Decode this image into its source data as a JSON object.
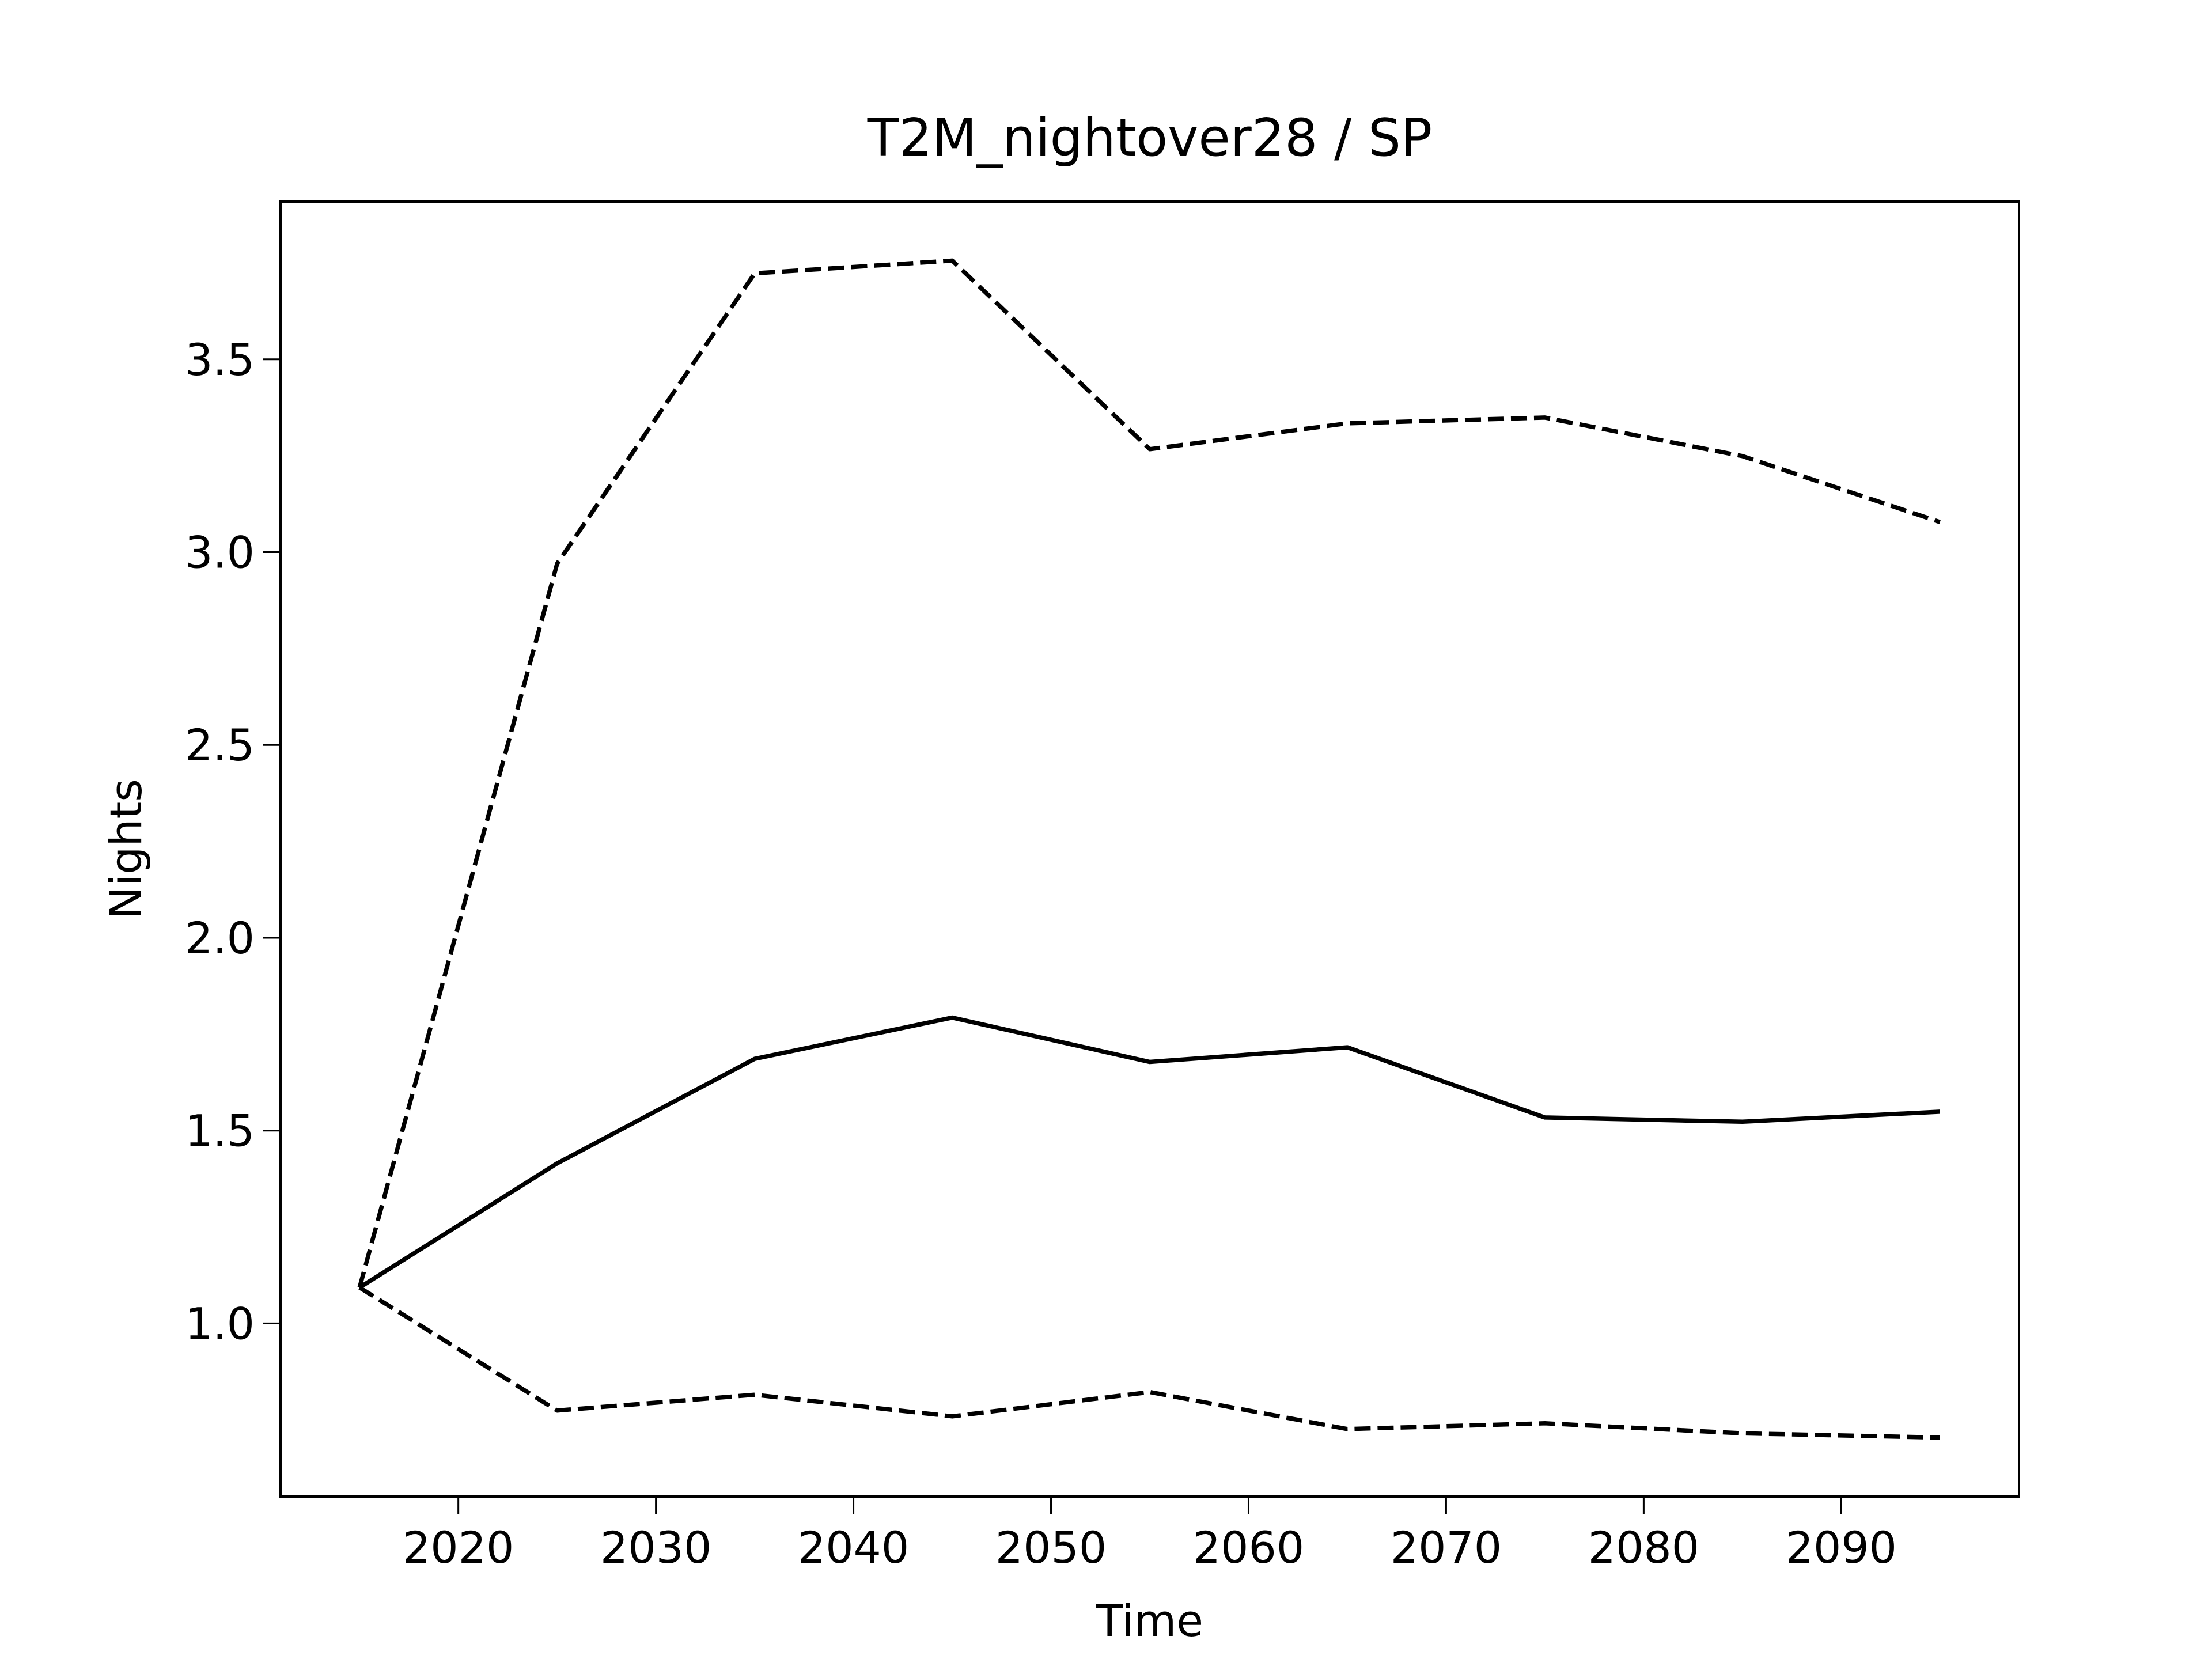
{
  "chart_data": {
    "type": "line",
    "title": "T2M_nightover28 / SP",
    "xlabel": "Time",
    "ylabel": "Nights",
    "x": [
      2015,
      2025,
      2035,
      2045,
      2055,
      2065,
      2075,
      2085,
      2095
    ],
    "series": [
      {
        "color": "#000000",
        "dashed": false,
        "values": [
          1.093,
          1.415,
          1.686,
          1.793,
          1.678,
          1.716,
          1.534,
          1.523,
          1.549
        ]
      },
      {
        "color": "#000000",
        "dashed": true,
        "values": [
          1.093,
          2.97,
          3.723,
          3.756,
          3.267,
          3.334,
          3.349,
          3.249,
          3.078
        ]
      },
      {
        "color": "#000000",
        "dashed": true,
        "values": [
          1.093,
          0.774,
          0.815,
          0.759,
          0.822,
          0.726,
          0.741,
          0.715,
          0.704
        ]
      }
    ],
    "xlim": [
      2011,
      2099
    ],
    "xticks": [
      2020,
      2030,
      2040,
      2050,
      2060,
      2070,
      2080,
      2090
    ],
    "ylim": [
      0.551,
      3.909
    ],
    "yticks": [
      {
        "value": 1,
        "label": "1.0"
      },
      1.5,
      {
        "value": 2,
        "label": "2.0"
      },
      2.5,
      {
        "value": 3,
        "label": "3.0"
      },
      3.5
    ],
    "grid": false
  }
}
